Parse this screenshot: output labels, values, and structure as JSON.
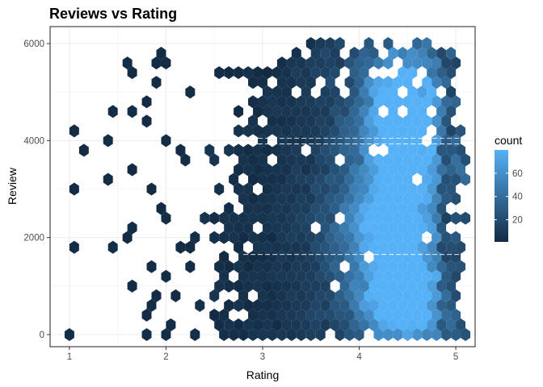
{
  "chart_data": {
    "type": "heatmap",
    "subtype": "hexbin",
    "title": "Reviews vs Rating",
    "xlabel": "Rating",
    "ylabel": "Review",
    "xlim": [
      0.8,
      5.2
    ],
    "ylim": [
      -250,
      6350
    ],
    "x_ticks": [
      1,
      2,
      3,
      4,
      5
    ],
    "y_ticks": [
      0,
      2000,
      4000,
      6000
    ],
    "grid": true,
    "legend": {
      "title": "count",
      "position": "right",
      "min": 1,
      "max": 80,
      "breaks": [
        20,
        40,
        60
      ],
      "color_low": "#132b43",
      "color_high": "#56b1f7"
    },
    "hex_grid": {
      "dx": 0.1,
      "dy": 200
    },
    "seed": 20240517,
    "sparse_points": [
      [
        1.0,
        0
      ],
      [
        1.05,
        2950
      ],
      [
        1.05,
        4150
      ],
      [
        1.05,
        1750
      ],
      [
        1.2,
        3800
      ],
      [
        1.4,
        3950
      ],
      [
        1.45,
        3150
      ],
      [
        1.45,
        1750
      ],
      [
        1.45,
        4500
      ],
      [
        1.55,
        5550
      ],
      [
        1.6,
        3350
      ],
      [
        1.65,
        5350
      ],
      [
        1.7,
        4650
      ],
      [
        1.75,
        4300
      ],
      [
        1.7,
        2250
      ],
      [
        1.65,
        2050
      ],
      [
        1.7,
        900
      ],
      [
        1.75,
        400
      ],
      [
        1.8,
        600
      ],
      [
        1.75,
        0
      ],
      [
        1.85,
        5150
      ],
      [
        1.9,
        5600
      ],
      [
        1.8,
        4850
      ],
      [
        1.9,
        2950
      ],
      [
        1.95,
        2650
      ],
      [
        1.9,
        1450
      ],
      [
        1.95,
        1100
      ],
      [
        1.85,
        750
      ],
      [
        2.0,
        200
      ],
      [
        2.0,
        0
      ],
      [
        1.95,
        5850
      ],
      [
        2.05,
        5650
      ],
      [
        2.0,
        4050
      ],
      [
        2.05,
        2350
      ],
      [
        2.1,
        1850
      ],
      [
        2.1,
        850
      ],
      [
        2.2,
        1700
      ],
      [
        2.25,
        1300
      ],
      [
        2.2,
        5050
      ],
      [
        2.15,
        3850
      ],
      [
        2.2,
        3500
      ]
    ],
    "density_rows": [
      {
        "y": 6000,
        "x0": 3.25,
        "x1": 5.0,
        "dens": 0.42
      },
      {
        "y": 5800,
        "x0": 3.1,
        "x1": 5.0,
        "dens": 0.9
      },
      {
        "y": 5600,
        "x0": 2.9,
        "x1": 5.05,
        "dens": 0.95
      },
      {
        "y": 5400,
        "x0": 2.55,
        "x1": 5.0,
        "dens": 0.85
      },
      {
        "y": 5200,
        "x0": 2.55,
        "x1": 5.05,
        "dens": 0.8
      },
      {
        "y": 5000,
        "x0": 2.8,
        "x1": 5.0,
        "dens": 0.85
      },
      {
        "y": 4800,
        "x0": 2.75,
        "x1": 5.05,
        "dens": 0.9
      },
      {
        "y": 4600,
        "x0": 2.65,
        "x1": 5.0,
        "dens": 0.9
      },
      {
        "y": 4400,
        "x0": 2.85,
        "x1": 5.0,
        "dens": 0.92
      },
      {
        "y": 4200,
        "x0": 2.6,
        "x1": 5.1,
        "dens": 0.95
      },
      {
        "y": 4000,
        "x0": 2.85,
        "x1": 5.1,
        "dens": 0.95
      },
      {
        "y": 3800,
        "x0": 2.2,
        "x1": 5.1,
        "dens": 0.92
      },
      {
        "y": 3600,
        "x0": 2.5,
        "x1": 5.1,
        "dens": 0.92
      },
      {
        "y": 3400,
        "x0": 2.6,
        "x1": 5.1,
        "dens": 0.95
      },
      {
        "y": 3200,
        "x0": 2.6,
        "x1": 5.1,
        "dens": 0.97
      },
      {
        "y": 3000,
        "x0": 2.3,
        "x1": 5.05,
        "dens": 0.97
      },
      {
        "y": 2800,
        "x0": 2.55,
        "x1": 5.1,
        "dens": 0.97
      },
      {
        "y": 2600,
        "x0": 2.5,
        "x1": 5.0,
        "dens": 0.98
      },
      {
        "y": 2400,
        "x0": 2.3,
        "x1": 5.1,
        "dens": 0.98
      },
      {
        "y": 2200,
        "x0": 2.4,
        "x1": 5.0,
        "dens": 0.98
      },
      {
        "y": 2000,
        "x0": 2.15,
        "x1": 5.1,
        "dens": 0.95
      },
      {
        "y": 1800,
        "x0": 2.6,
        "x1": 5.1,
        "dens": 0.95
      },
      {
        "y": 1600,
        "x0": 2.55,
        "x1": 5.1,
        "dens": 0.95
      },
      {
        "y": 1400,
        "x0": 2.55,
        "x1": 5.05,
        "dens": 0.95
      },
      {
        "y": 1200,
        "x0": 2.65,
        "x1": 5.1,
        "dens": 0.97
      },
      {
        "y": 1000,
        "x0": 2.3,
        "x1": 5.05,
        "dens": 0.97
      },
      {
        "y": 800,
        "x0": 2.55,
        "x1": 5.1,
        "dens": 0.98
      },
      {
        "y": 600,
        "x0": 2.3,
        "x1": 5.05,
        "dens": 0.98
      },
      {
        "y": 400,
        "x0": 2.55,
        "x1": 5.1,
        "dens": 0.98
      },
      {
        "y": 200,
        "x0": 2.35,
        "x1": 5.05,
        "dens": 0.98
      },
      {
        "y": 0,
        "x0": 2.3,
        "x1": 5.1,
        "dens": 0.98
      }
    ],
    "hotspots": [
      {
        "x": 4.45,
        "y": 5000,
        "peak": 80,
        "sx": 0.28,
        "sy": 700
      },
      {
        "x": 4.4,
        "y": 3000,
        "peak": 55,
        "sx": 0.3,
        "sy": 1000
      },
      {
        "x": 4.4,
        "y": 1300,
        "peak": 55,
        "sx": 0.3,
        "sy": 900
      },
      {
        "x": 4.45,
        "y": 500,
        "peak": 60,
        "sx": 0.3,
        "sy": 500
      },
      {
        "x": 4.5,
        "y": 4000,
        "peak": 45,
        "sx": 0.3,
        "sy": 600
      },
      {
        "x": 4.2,
        "y": 2200,
        "peak": 40,
        "sx": 0.35,
        "sy": 900
      }
    ],
    "white_lines_y": [
      4050,
      3930,
      1650
    ]
  }
}
